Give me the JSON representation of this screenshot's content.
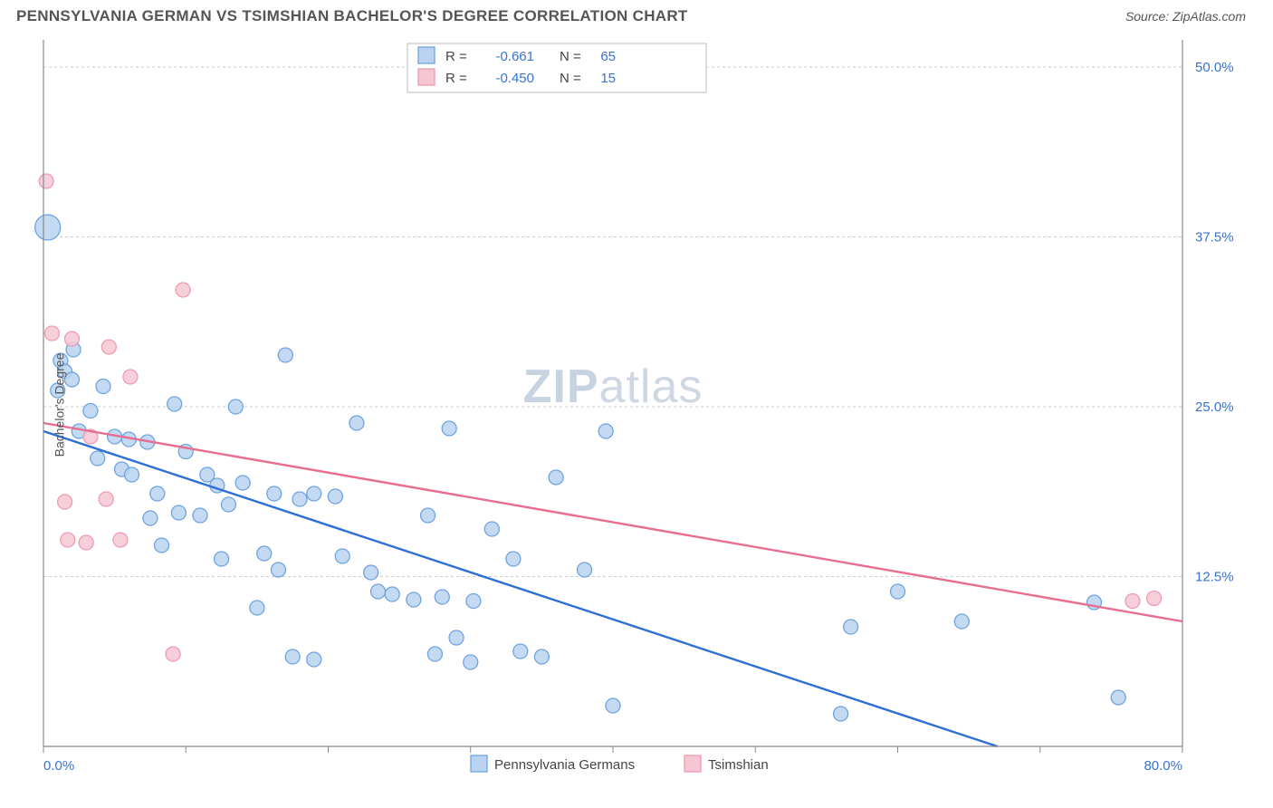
{
  "header": {
    "title": "PENNSYLVANIA GERMAN VS TSIMSHIAN BACHELOR'S DEGREE CORRELATION CHART",
    "source": "Source: ZipAtlas.com"
  },
  "chart": {
    "type": "scatter",
    "ylabel": "Bachelor's Degree",
    "xlim": [
      0,
      80
    ],
    "ylim": [
      0,
      52
    ],
    "xticks": [
      0,
      10,
      20,
      30,
      40,
      50,
      60,
      70,
      80
    ],
    "xtick_labels": {
      "0": "0.0%",
      "80": "80.0%"
    },
    "yticks": [
      12.5,
      25.0,
      37.5,
      50.0
    ],
    "ytick_labels": [
      "12.5%",
      "25.0%",
      "37.5%",
      "50.0%"
    ],
    "grid_color": "#cccccc",
    "axis_color": "#888888",
    "background_color": "#ffffff",
    "watermark": "ZIPatlas",
    "series": [
      {
        "name": "Pennsylvania Germans",
        "color_fill": "#b9d3f0",
        "color_stroke": "#6fa3e0",
        "line_color": "#2e6fd6",
        "marker_radius": 8,
        "r_value": "-0.661",
        "n_value": "65",
        "regression": {
          "x1": 0,
          "y1": 23.2,
          "x2": 67,
          "y2": 0
        },
        "points": [
          {
            "x": 0.3,
            "y": 38.2,
            "r": 14
          },
          {
            "x": 1.2,
            "y": 28.4
          },
          {
            "x": 1.5,
            "y": 27.6
          },
          {
            "x": 1.0,
            "y": 26.2
          },
          {
            "x": 2.1,
            "y": 29.2
          },
          {
            "x": 2.0,
            "y": 27.0
          },
          {
            "x": 4.2,
            "y": 26.5
          },
          {
            "x": 3.3,
            "y": 24.7
          },
          {
            "x": 2.5,
            "y": 23.2
          },
          {
            "x": 5.0,
            "y": 22.8
          },
          {
            "x": 6.0,
            "y": 22.6
          },
          {
            "x": 7.3,
            "y": 22.4
          },
          {
            "x": 3.8,
            "y": 21.2
          },
          {
            "x": 5.5,
            "y": 20.4
          },
          {
            "x": 6.2,
            "y": 20.0
          },
          {
            "x": 9.2,
            "y": 25.2
          },
          {
            "x": 13.5,
            "y": 25.0
          },
          {
            "x": 10.0,
            "y": 21.7
          },
          {
            "x": 11.5,
            "y": 20.0
          },
          {
            "x": 12.2,
            "y": 19.2
          },
          {
            "x": 14.0,
            "y": 19.4
          },
          {
            "x": 8.0,
            "y": 18.6
          },
          {
            "x": 7.5,
            "y": 16.8
          },
          {
            "x": 9.5,
            "y": 17.2
          },
          {
            "x": 11.0,
            "y": 17.0
          },
          {
            "x": 13.0,
            "y": 17.8
          },
          {
            "x": 16.2,
            "y": 18.6
          },
          {
            "x": 17.0,
            "y": 28.8
          },
          {
            "x": 15.5,
            "y": 14.2
          },
          {
            "x": 16.5,
            "y": 13.0
          },
          {
            "x": 18.0,
            "y": 18.2
          },
          {
            "x": 19.0,
            "y": 18.6
          },
          {
            "x": 20.5,
            "y": 18.4
          },
          {
            "x": 21.0,
            "y": 14.0
          },
          {
            "x": 22.0,
            "y": 23.8
          },
          {
            "x": 23.0,
            "y": 12.8
          },
          {
            "x": 23.5,
            "y": 11.4
          },
          {
            "x": 24.5,
            "y": 11.2
          },
          {
            "x": 26.0,
            "y": 10.8
          },
          {
            "x": 28.0,
            "y": 11.0
          },
          {
            "x": 28.5,
            "y": 23.4
          },
          {
            "x": 27.0,
            "y": 17.0
          },
          {
            "x": 30.0,
            "y": 6.2
          },
          {
            "x": 30.2,
            "y": 10.7
          },
          {
            "x": 17.5,
            "y": 6.6
          },
          {
            "x": 19.0,
            "y": 6.4
          },
          {
            "x": 27.5,
            "y": 6.8
          },
          {
            "x": 29.0,
            "y": 8.0
          },
          {
            "x": 31.5,
            "y": 16.0
          },
          {
            "x": 33.0,
            "y": 13.8
          },
          {
            "x": 33.5,
            "y": 7.0
          },
          {
            "x": 35.0,
            "y": 6.6
          },
          {
            "x": 36.0,
            "y": 19.8
          },
          {
            "x": 38.0,
            "y": 13.0
          },
          {
            "x": 39.5,
            "y": 23.2
          },
          {
            "x": 40.0,
            "y": 3.0
          },
          {
            "x": 15.0,
            "y": 10.2
          },
          {
            "x": 12.5,
            "y": 13.8
          },
          {
            "x": 8.3,
            "y": 14.8
          },
          {
            "x": 56.0,
            "y": 2.4
          },
          {
            "x": 60.0,
            "y": 11.4
          },
          {
            "x": 56.7,
            "y": 8.8
          },
          {
            "x": 64.5,
            "y": 9.2
          },
          {
            "x": 75.5,
            "y": 3.6
          },
          {
            "x": 73.8,
            "y": 10.6
          }
        ]
      },
      {
        "name": "Tsimshian",
        "color_fill": "#f6c7d3",
        "color_stroke": "#ec9cb2",
        "line_color": "#e86d8f",
        "marker_radius": 8,
        "r_value": "-0.450",
        "n_value": "15",
        "regression": {
          "x1": 0,
          "y1": 23.8,
          "x2": 80,
          "y2": 9.2
        },
        "points": [
          {
            "x": 0.2,
            "y": 41.6
          },
          {
            "x": 0.6,
            "y": 30.4
          },
          {
            "x": 2.0,
            "y": 30.0
          },
          {
            "x": 4.6,
            "y": 29.4
          },
          {
            "x": 9.8,
            "y": 33.6
          },
          {
            "x": 3.3,
            "y": 22.8
          },
          {
            "x": 6.1,
            "y": 27.2
          },
          {
            "x": 1.5,
            "y": 18.0
          },
          {
            "x": 4.4,
            "y": 18.2
          },
          {
            "x": 1.7,
            "y": 15.2
          },
          {
            "x": 3.0,
            "y": 15.0
          },
          {
            "x": 5.4,
            "y": 15.2
          },
          {
            "x": 9.1,
            "y": 6.8
          },
          {
            "x": 76.5,
            "y": 10.7
          },
          {
            "x": 78.0,
            "y": 10.9
          }
        ]
      }
    ],
    "bottom_legend": [
      {
        "label": "Pennsylvania Germans",
        "fill": "#b9d3f0",
        "stroke": "#6fa3e0"
      },
      {
        "label": "Tsimshian",
        "fill": "#f6c7d3",
        "stroke": "#ec9cb2"
      }
    ],
    "stat_legend_labels": {
      "r": "R =",
      "n": "N ="
    }
  }
}
